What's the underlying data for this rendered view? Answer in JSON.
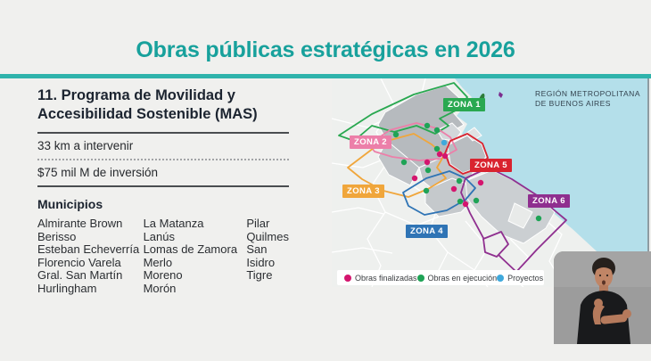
{
  "header": {
    "title": "Obras públicas estratégicas en 2026",
    "title_color": "#18a19c",
    "divider_color": "#2fb3ab"
  },
  "panel": {
    "heading_line1": "11. Programa de Movilidad y",
    "heading_line2": "Accesibilidad Sostenible (MAS)",
    "stats": {
      "km": "33 km a intervenir",
      "inversion": "$75 mil M de inversión"
    },
    "municipios": {
      "title": "Municipios",
      "col1": [
        "Almirante Brown",
        "Berisso",
        "Esteban Echeverría",
        "Florencio Varela",
        "Gral. San Martín",
        "Hurlingham"
      ],
      "col2": [
        "La Matanza",
        "Lanús",
        "Lomas de Zamora",
        "Merlo",
        "Moreno",
        "Morón"
      ],
      "col3": [
        "Pilar",
        "Quilmes",
        "San Isidro",
        "Tigre"
      ]
    }
  },
  "map": {
    "region_label_line1": "REGIÓN METROPOLITANA",
    "region_label_line2": "DE BUENOS AIRES",
    "water_color": "#b4dfea",
    "land_color": "#eef0ee",
    "zones": [
      {
        "label": "ZONA 1",
        "color": "#29a850"
      },
      {
        "label": "ZONA 2",
        "color": "#ec7fa9"
      },
      {
        "label": "ZONA 3",
        "color": "#f0a63b"
      },
      {
        "label": "ZONA 4",
        "color": "#2f74b5"
      },
      {
        "label": "ZONA 5",
        "color": "#d9232f"
      },
      {
        "label": "ZONA 6",
        "color": "#8f2f8f"
      }
    ],
    "legend": [
      {
        "label": "Obras finalizadas",
        "color": "#d4156e"
      },
      {
        "label": "Obras en ejecución",
        "color": "#1fa356"
      },
      {
        "label": "Proyectos",
        "color": "#3fa9dc"
      }
    ],
    "works": {
      "finalizadas": {
        "color": "#d4156e",
        "points": [
          [
            121,
            85
          ],
          [
            127,
            87
          ],
          [
            107,
            94
          ],
          [
            93,
            112
          ],
          [
            137,
            124
          ],
          [
            150,
            141
          ],
          [
            167,
            117
          ]
        ]
      },
      "ejecucion": {
        "color": "#1fa356",
        "points": [
          [
            72,
            63
          ],
          [
            107,
            53
          ],
          [
            118,
            58
          ],
          [
            81,
            94
          ],
          [
            118,
            79
          ],
          [
            108,
            103
          ],
          [
            106,
            126
          ],
          [
            143,
            115
          ],
          [
            144,
            138
          ],
          [
            162,
            137
          ],
          [
            232,
            157
          ]
        ]
      },
      "proyectos": {
        "color": "#3fa9dc",
        "points": [
          [
            126,
            72
          ]
        ]
      }
    }
  },
  "interpreter": {
    "description": "sign-language-interpreter"
  }
}
